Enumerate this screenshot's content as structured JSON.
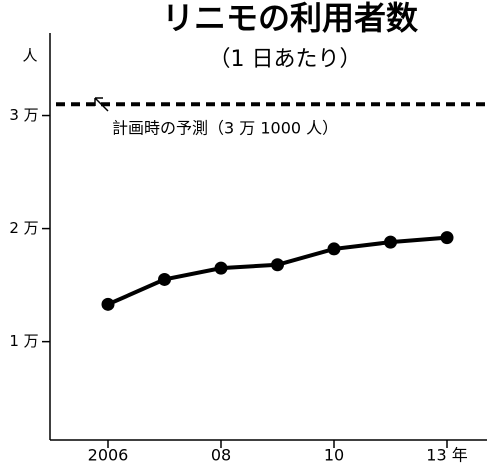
{
  "chart_data": {
    "type": "line",
    "title": "リニモの利用者数",
    "subtitle": "（1 日あたり）",
    "y_label": "人",
    "categories": [
      "2006",
      null,
      "08",
      null,
      "10",
      null,
      "13 年"
    ],
    "series": [
      {
        "name": null,
        "color": "#000000",
        "values": [
          13300,
          15500,
          16500,
          16800,
          18200,
          18800,
          19200
        ]
      }
    ],
    "reference": {
      "value": 31000,
      "label": "計画時の予測（3 万 1000 人）"
    },
    "ylim": [
      1300,
      37300
    ],
    "yticks": [
      {
        "value": 10000,
        "label": "1 万"
      },
      {
        "value": 20000,
        "label": "2 万"
      },
      {
        "value": 30000,
        "label": "3 万"
      }
    ],
    "grid": false
  }
}
